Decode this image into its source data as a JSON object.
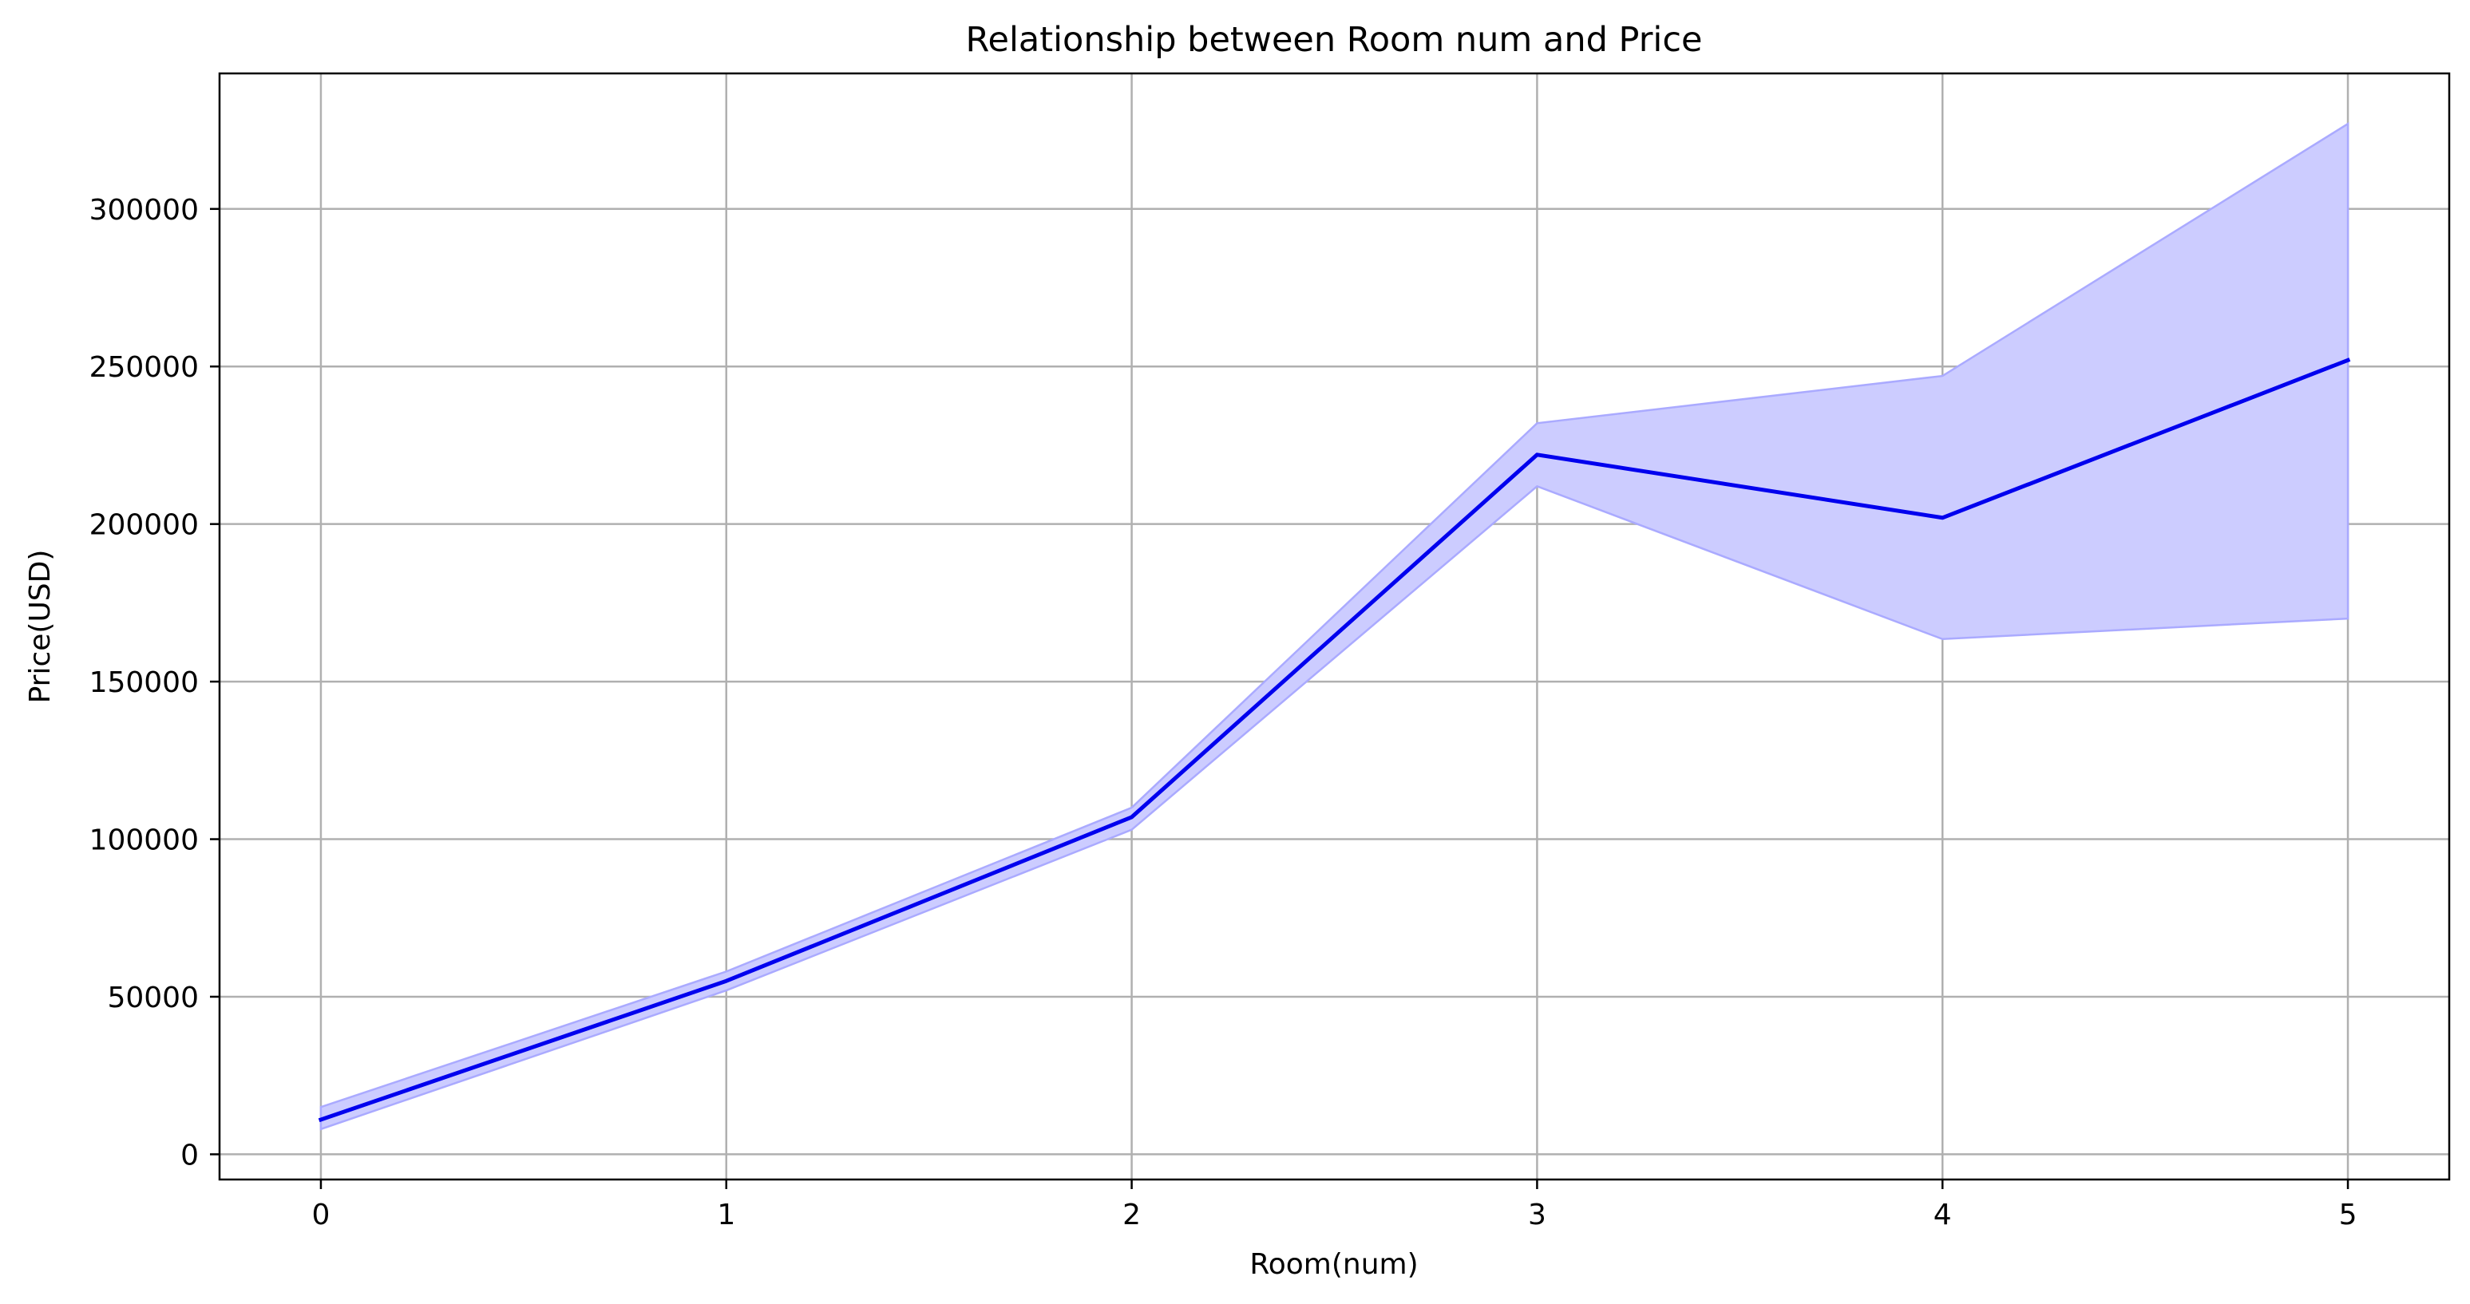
{
  "chart_data": {
    "type": "line",
    "title": "Relationship between Room num and Price",
    "xlabel": "Room(num)",
    "ylabel": "Price(USD)",
    "x": [
      0,
      1,
      2,
      3,
      4,
      5
    ],
    "xticks": [
      "0",
      "1",
      "2",
      "3",
      "4",
      "5"
    ],
    "yticks": [
      "0",
      "50000",
      "100000",
      "150000",
      "200000",
      "250000",
      "300000"
    ],
    "ytick_values": [
      0,
      50000,
      100000,
      150000,
      200000,
      250000,
      300000
    ],
    "xlim": [
      -0.25,
      5.25
    ],
    "ylim": [
      -8000,
      343000
    ],
    "grid": true,
    "series": [
      {
        "values": [
          11000,
          55000,
          107000,
          222000,
          202000,
          252000
        ],
        "band_lower": [
          8000,
          52000,
          103000,
          212000,
          163500,
          170000
        ],
        "band_upper": [
          15000,
          58000,
          110000,
          232000,
          247000,
          327000
        ],
        "color": "#0000ee",
        "band_color": "#ccccff",
        "band_edge_color": "#aaaaff"
      }
    ],
    "grid_color": "#b0b0b0",
    "axis_color": "#000000"
  }
}
